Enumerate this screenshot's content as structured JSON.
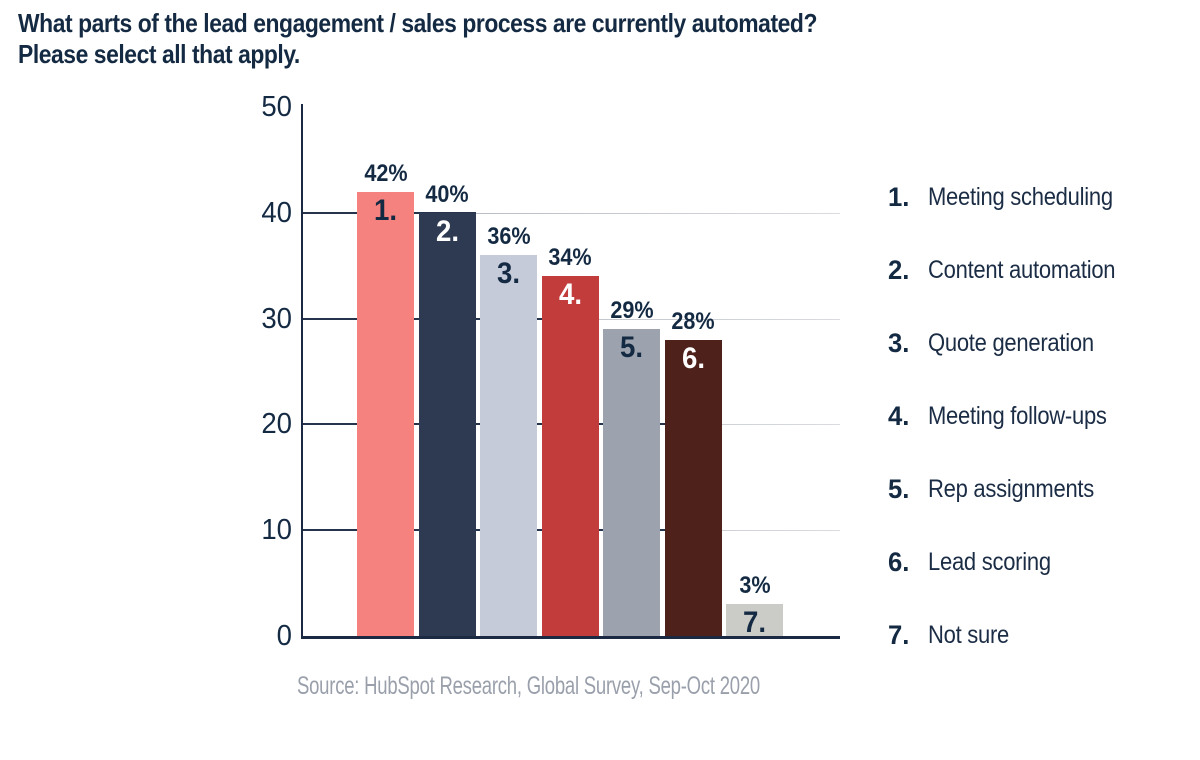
{
  "title": {
    "line1": "What parts of the lead engagement / sales process are currently automated?",
    "line2": "Please select all that apply."
  },
  "source_note": "Source: HubSpot Research, Global Survey, Sep-Oct 2020",
  "colors": {
    "title_text": "#142A43",
    "axis": "#1B2A42",
    "grid_dark": "#25334C",
    "grid_light": "#C4C7CE",
    "source_text": "#9AA0AB",
    "legend_text": "#1B2C45"
  },
  "chart_data": {
    "type": "bar",
    "title": "What parts of the lead engagement / sales process are currently automated? Please select all that apply.",
    "categories": [
      "Meeting scheduling",
      "Content automation",
      "Quote generation",
      "Meeting follow-ups",
      "Rep assignments",
      "Lead scoring",
      "Not sure"
    ],
    "values": [
      42,
      40,
      36,
      34,
      29,
      28,
      3
    ],
    "value_labels": [
      "42%",
      "40%",
      "36%",
      "34%",
      "29%",
      "28%",
      "3%"
    ],
    "bar_number_labels": [
      "1.",
      "2.",
      "3.",
      "4.",
      "5.",
      "6.",
      "7."
    ],
    "bar_colors": [
      "#F5827E",
      "#2E3A52",
      "#C5CBD9",
      "#C33C3C",
      "#9CA2AE",
      "#4E211B",
      "#CBCBC7"
    ],
    "bar_number_colors": [
      "#142A43",
      "#FFFFFF",
      "#142A43",
      "#FFFFFF",
      "#142A43",
      "#FFFFFF",
      "#142A43"
    ],
    "xlabel": "",
    "ylabel": "",
    "ylim": [
      0,
      50
    ],
    "yticks": [
      0,
      10,
      20,
      30,
      40,
      50
    ],
    "grid": true,
    "legend_position": "right",
    "legend": [
      {
        "number": "1.",
        "label": "Meeting scheduling"
      },
      {
        "number": "2.",
        "label": "Content automation"
      },
      {
        "number": "3.",
        "label": "Quote generation"
      },
      {
        "number": "4.",
        "label": "Meeting follow-ups"
      },
      {
        "number": "5.",
        "label": "Rep assignments"
      },
      {
        "number": "6.",
        "label": "Lead scoring"
      },
      {
        "number": "7.",
        "label": "Not sure"
      }
    ],
    "source": "Source: HubSpot Research, Global Survey, Sep-Oct 2020"
  }
}
